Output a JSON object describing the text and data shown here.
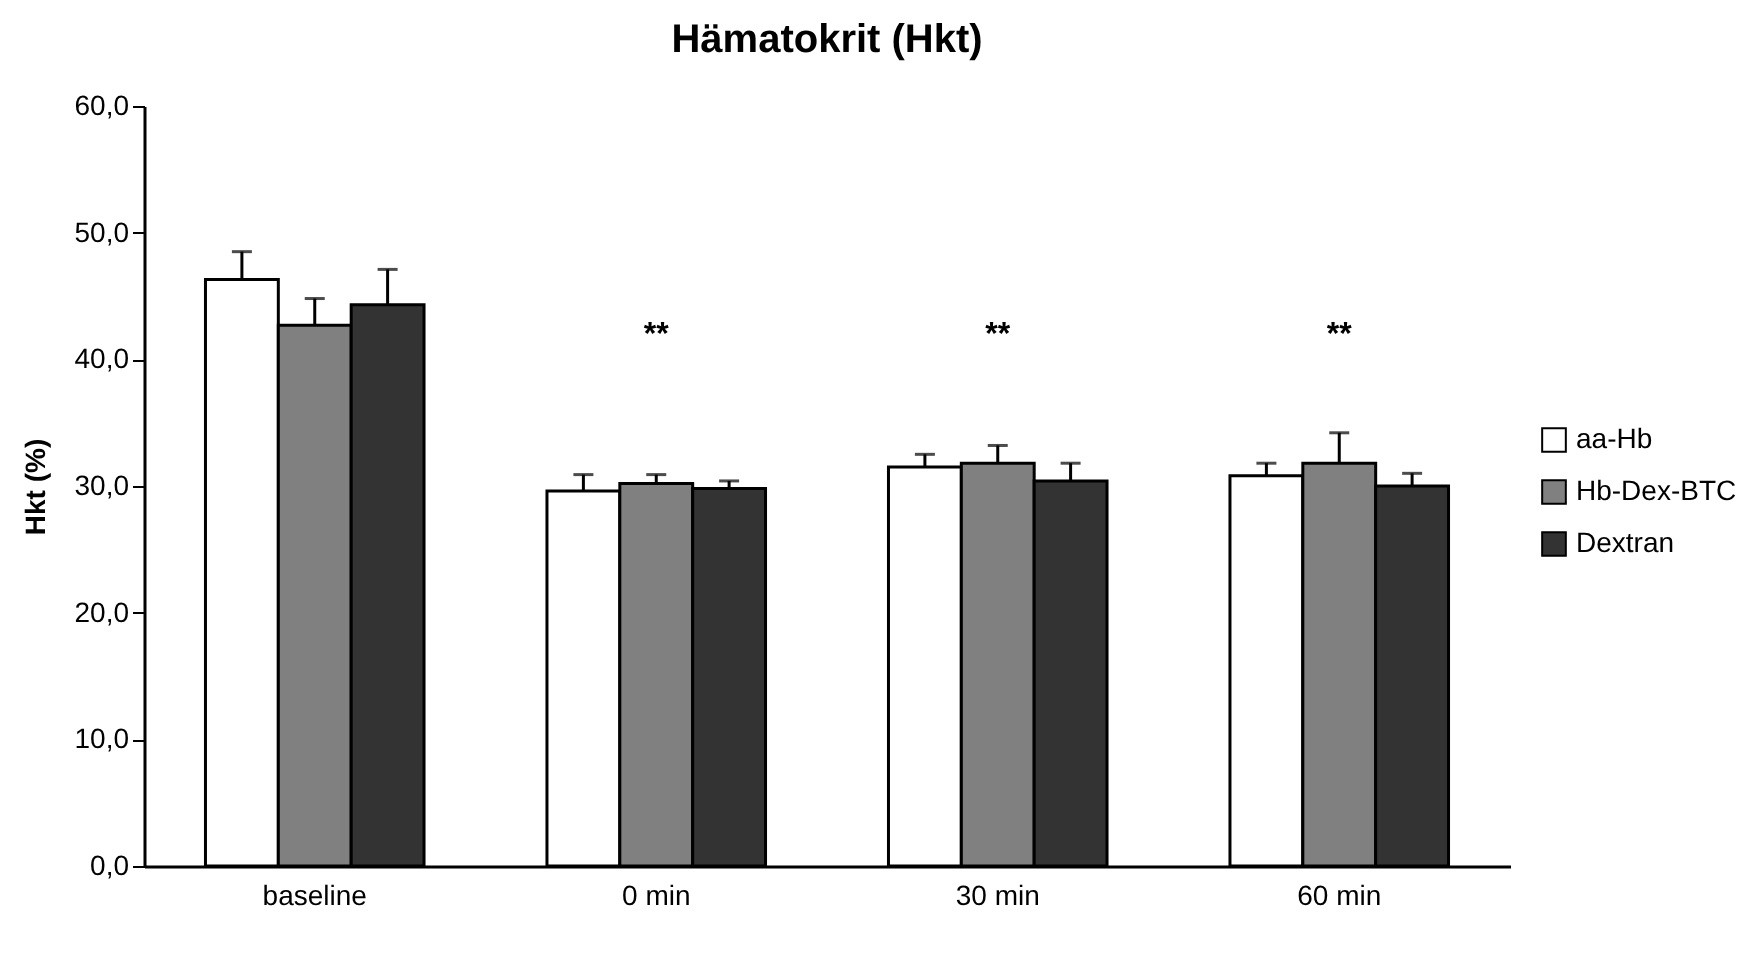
{
  "chart_data": {
    "type": "bar",
    "title": "Hämatokrit (Hkt)",
    "ylabel": "Hkt (%)",
    "categories": [
      "baseline",
      "0 min",
      "30 min",
      "60 min"
    ],
    "series": [
      {
        "name": "aa-Hb",
        "color": "#ffffff",
        "values": [
          46.3,
          29.6,
          31.5,
          30.8
        ],
        "errors": [
          2.2,
          1.3,
          1.0,
          1.0
        ]
      },
      {
        "name": "Hb-Dex-BTC",
        "color": "#808080",
        "values": [
          42.7,
          30.2,
          31.8,
          31.8
        ],
        "errors": [
          2.1,
          0.7,
          1.4,
          2.4
        ]
      },
      {
        "name": "Dextran",
        "color": "#333333",
        "values": [
          44.3,
          29.8,
          30.4,
          30.0
        ],
        "errors": [
          2.8,
          0.6,
          1.4,
          1.0
        ]
      }
    ],
    "ylim": [
      0,
      60
    ],
    "yticks": [
      {
        "value": 0,
        "label": "0,0"
      },
      {
        "value": 10,
        "label": "10,0"
      },
      {
        "value": 20,
        "label": "20,0"
      },
      {
        "value": 30,
        "label": "30,0"
      },
      {
        "value": 40,
        "label": "40,0"
      },
      {
        "value": 50,
        "label": "50,0"
      },
      {
        "value": 60,
        "label": "60,0"
      }
    ],
    "annotations": [
      "**",
      "**",
      "**"
    ],
    "grid": false,
    "legend": "right"
  }
}
